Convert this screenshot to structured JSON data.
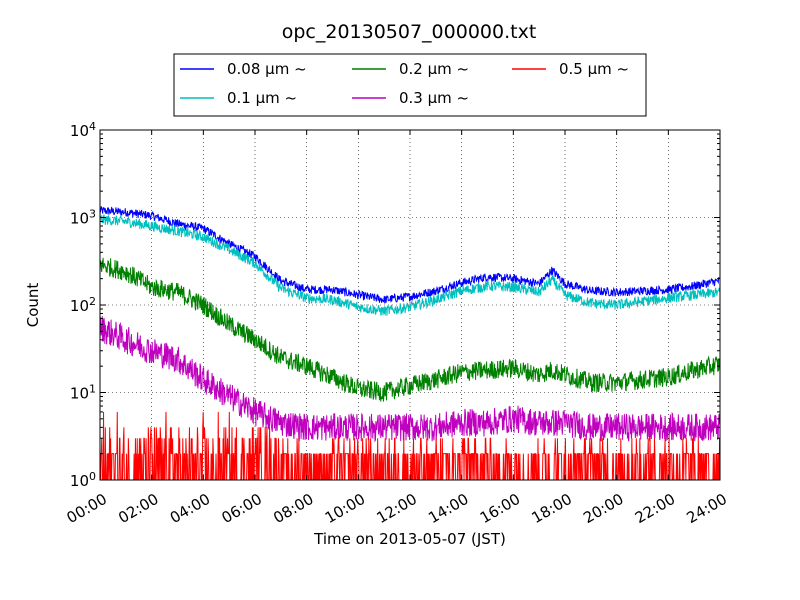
{
  "chart_data": {
    "type": "line",
    "title": "opc_20130507_000000.txt",
    "xlabel": "Time on 2013-05-07 (JST)",
    "ylabel": "Count",
    "yscale": "log",
    "xlim": [
      "00:00",
      "24:00"
    ],
    "ylim": [
      1,
      10000
    ],
    "grid": true,
    "legend_placement": "top-center, above plot",
    "x_ticks": [
      "00:00",
      "02:00",
      "04:00",
      "06:00",
      "08:00",
      "10:00",
      "12:00",
      "14:00",
      "16:00",
      "18:00",
      "20:00",
      "22:00",
      "24:00"
    ],
    "y_ticks": [
      {
        "base": "10",
        "exp": "0",
        "value": 1
      },
      {
        "base": "10",
        "exp": "1",
        "value": 10
      },
      {
        "base": "10",
        "exp": "2",
        "value": 100
      },
      {
        "base": "10",
        "exp": "3",
        "value": 1000
      },
      {
        "base": "10",
        "exp": "4",
        "value": 10000
      }
    ],
    "x": [
      "00:00",
      "01:00",
      "02:00",
      "03:00",
      "04:00",
      "05:00",
      "06:00",
      "07:00",
      "08:00",
      "09:00",
      "10:00",
      "11:00",
      "12:00",
      "13:00",
      "14:00",
      "15:00",
      "16:00",
      "17:00",
      "17:30",
      "18:00",
      "19:00",
      "20:00",
      "21:00",
      "22:00",
      "23:00",
      "24:00"
    ],
    "series": [
      {
        "name": "0.08 μm ~",
        "color": "#0000ff",
        "noise": 0.05,
        "values": [
          1200,
          1150,
          1050,
          850,
          750,
          500,
          360,
          190,
          150,
          150,
          130,
          115,
          125,
          145,
          180,
          210,
          200,
          175,
          250,
          175,
          145,
          140,
          145,
          150,
          165,
          190
        ]
      },
      {
        "name": "0.1 μm ~",
        "color": "#00bfbf",
        "noise": 0.06,
        "values": [
          950,
          900,
          800,
          700,
          600,
          430,
          300,
          155,
          120,
          115,
          95,
          85,
          95,
          115,
          145,
          165,
          160,
          140,
          195,
          130,
          105,
          100,
          110,
          120,
          130,
          140
        ]
      },
      {
        "name": "0.2 μm ~",
        "color": "#008000",
        "noise": 0.11,
        "values": [
          290,
          240,
          160,
          140,
          100,
          60,
          40,
          25,
          20,
          15,
          11,
          10,
          12,
          14,
          17,
          18,
          19,
          16,
          18,
          16,
          13,
          13,
          14,
          15,
          18,
          21
        ]
      },
      {
        "name": "0.3 μm ~",
        "color": "#bf00bf",
        "noise": 0.16,
        "values": [
          55,
          40,
          30,
          24,
          14,
          9,
          6,
          4.5,
          4,
          4,
          4,
          4,
          4,
          4,
          4.5,
          4.5,
          5,
          4.5,
          4.5,
          4.5,
          4,
          4,
          4,
          4,
          4,
          4
        ]
      },
      {
        "name": "0.5 μm ~",
        "color": "#ff0000",
        "noise": 0.2,
        "values": [
          2,
          2,
          2,
          1.6,
          1.4,
          1.2,
          1.1,
          1,
          1,
          1,
          1,
          1,
          1,
          1,
          1,
          1,
          1.1,
          1,
          1,
          1,
          1,
          1,
          1,
          1,
          1,
          1
        ]
      }
    ]
  }
}
